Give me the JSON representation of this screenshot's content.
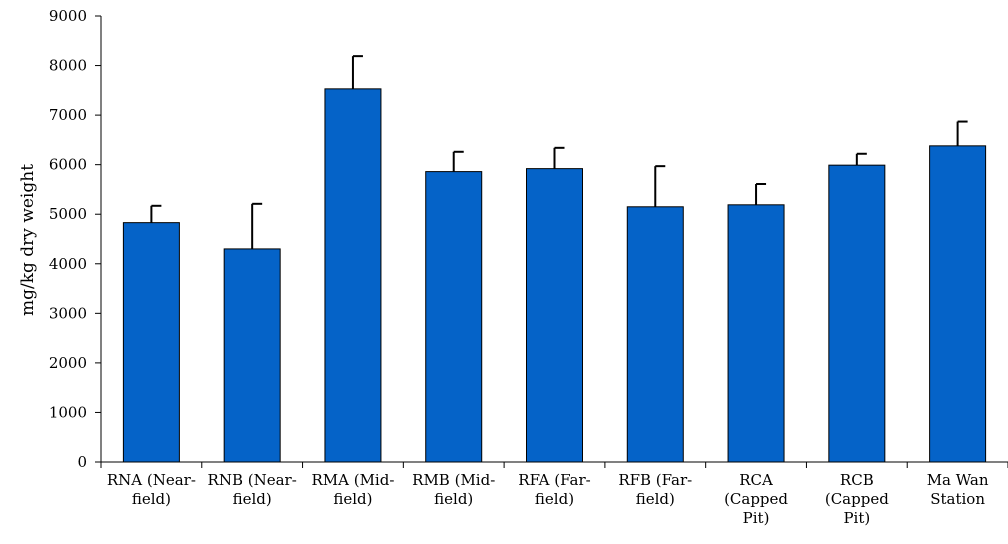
{
  "chart_data": {
    "type": "bar",
    "title": "",
    "xlabel": "",
    "ylabel": "mg/kg dry weight",
    "ylim": [
      0,
      9000
    ],
    "yticks": [
      0,
      1000,
      2000,
      3000,
      4000,
      5000,
      6000,
      7000,
      8000,
      9000
    ],
    "grid": false,
    "legend": "none",
    "bar_color": "#0563C8",
    "categories": [
      [
        "RNA (Near-",
        "field)"
      ],
      [
        "RNB (Near-",
        "field)"
      ],
      [
        "RMA (Mid-",
        "field)"
      ],
      [
        "RMB (Mid-",
        "field)"
      ],
      [
        "RFA (Far-",
        "field)"
      ],
      [
        "RFB (Far-",
        "field)"
      ],
      [
        "RCA",
        "(Capped",
        "Pit)"
      ],
      [
        "RCB",
        "(Capped",
        "Pit)"
      ],
      [
        "Ma Wan",
        "Station"
      ]
    ],
    "values": [
      4830,
      4300,
      7530,
      5860,
      5920,
      5150,
      5190,
      5990,
      6380
    ],
    "errors": [
      340,
      910,
      660,
      400,
      420,
      820,
      420,
      230,
      490
    ]
  }
}
